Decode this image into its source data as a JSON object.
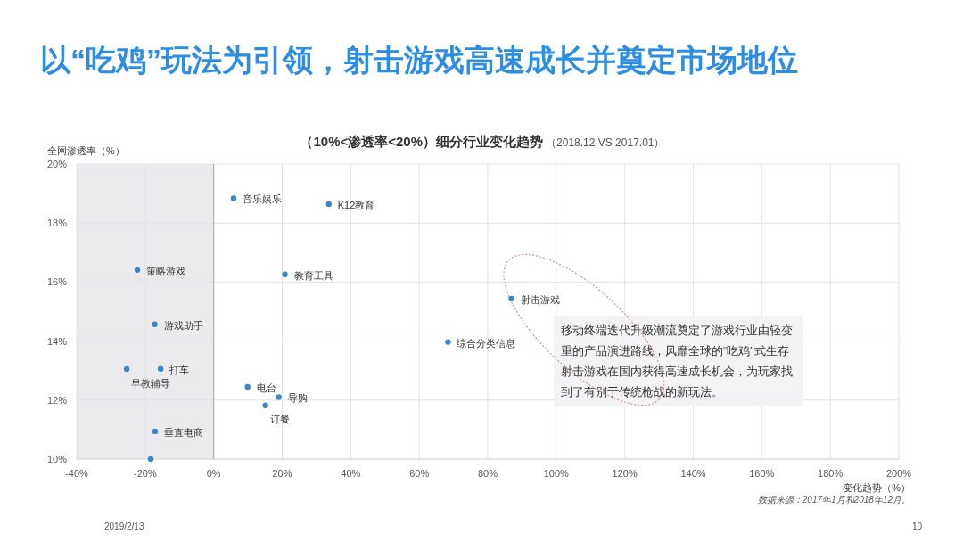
{
  "chart_data": {
    "type": "scatter",
    "title": "以“吃鸡”玩法为引领，射击游戏高速成长并奠定市场地位",
    "subtitle": "（10%<渗透率<20%）细分行业变化趋势",
    "xlabel": "变化趋势（%）",
    "ylabel": "全网渗透率（%）",
    "xlim": [
      -40,
      200
    ],
    "ylim": [
      10,
      20
    ],
    "xticks": [
      {
        "value": -40,
        "label": "-40%"
      },
      {
        "value": -20,
        "label": "-20%"
      },
      {
        "value": 0,
        "label": "0%"
      },
      {
        "value": 20,
        "label": "20%"
      },
      {
        "value": 40,
        "label": "40%"
      },
      {
        "value": 60,
        "label": "60%"
      },
      {
        "value": 80,
        "label": "80%"
      },
      {
        "value": 100,
        "label": "100%"
      },
      {
        "value": 120,
        "label": "120%"
      },
      {
        "value": 140,
        "label": "140%"
      },
      {
        "value": 160,
        "label": "160%"
      },
      {
        "value": 180,
        "label": "180%"
      },
      {
        "value": 200,
        "label": "200%"
      }
    ],
    "yticks": [
      {
        "value": 10,
        "label": "10%"
      },
      {
        "value": 12,
        "label": "12%"
      },
      {
        "value": 14,
        "label": "14%"
      },
      {
        "value": 16,
        "label": "16%"
      },
      {
        "value": 18,
        "label": "18%"
      },
      {
        "value": 20,
        "label": "20%"
      }
    ],
    "grid": true,
    "marker": "circle",
    "bands": [
      {
        "axis": "x",
        "from": -40,
        "to": 0,
        "color": "#ebebee"
      }
    ],
    "ref_lines": [
      {
        "axis": "x",
        "value": 0,
        "color": "#a6a6a6"
      }
    ],
    "series": [
      {
        "name": "音乐娱乐",
        "color": "#3b86c9",
        "x": [
          5.8
        ],
        "values": [
          18.84
        ]
      },
      {
        "name": "K12教育",
        "color": "#3b86c9",
        "x": [
          33.6
        ],
        "values": [
          18.64
        ]
      },
      {
        "name": "策略游戏",
        "color": "#3b86c9",
        "x": [
          -22.3
        ],
        "values": [
          16.41
        ]
      },
      {
        "name": "教育工具",
        "color": "#3b86c9",
        "x": [
          20.8
        ],
        "values": [
          16.26
        ]
      },
      {
        "name": "射击游戏",
        "color": "#3b86c9",
        "x": [
          86.9
        ],
        "values": [
          15.44
        ]
      },
      {
        "name": "游戏助手",
        "color": "#3b86c9",
        "x": [
          -17.2
        ],
        "values": [
          14.57
        ]
      },
      {
        "name": "综合分类信息",
        "color": "#3b86c9",
        "x": [
          68.4
        ],
        "values": [
          13.97
        ]
      },
      {
        "name": "打车",
        "color": "#3b86c9",
        "x": [
          -15.5
        ],
        "values": [
          13.06
        ]
      },
      {
        "name": "早教辅导",
        "color": "#3b86c9",
        "x": [
          -25.4
        ],
        "values": [
          13.05
        ]
      },
      {
        "name": "电台",
        "color": "#3b86c9",
        "x": [
          9.9
        ],
        "values": [
          12.45
        ]
      },
      {
        "name": "导购",
        "color": "#3b86c9",
        "x": [
          19.0
        ],
        "values": [
          12.1
        ]
      },
      {
        "name": "订餐",
        "color": "#3b86c9",
        "x": [
          15.1
        ],
        "values": [
          11.82
        ]
      },
      {
        "name": "垂直电商",
        "color": "#3b86c9",
        "x": [
          -17.1
        ],
        "values": [
          10.94
        ]
      },
      {
        "color": "#3b86c9",
        "x": [
          -18.4
        ],
        "values": [
          10.0
        ]
      }
    ],
    "annotations": [
      "（2018.12 VS 2017.01）",
      "移动终端迭代升级潮流奠定了游戏行业由轻变重的产品演进路线，风靡全球的“吃鸡”式生存射击游戏在国内获得高速成长机会，为玩家找到了有别于传统枪战的新玩法。",
      "数据来源：2017年1月和2018年12月。",
      "2019/2/13",
      "10"
    ]
  }
}
